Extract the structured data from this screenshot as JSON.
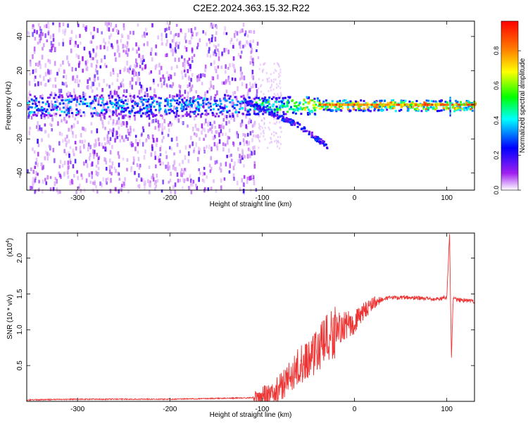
{
  "figure": {
    "title": "C2E2.2024.363.15.32.R22"
  },
  "chart_data": [
    {
      "type": "heatmap",
      "xlabel": "Height of straight line (km)",
      "ylabel": "Frequency (Hz)",
      "xlim": [
        -355,
        130
      ],
      "ylim": [
        -50,
        49
      ],
      "x_ticks": [
        -300,
        -200,
        -100,
        0,
        100
      ],
      "y_ticks": [
        -40,
        -20,
        0,
        20,
        40
      ],
      "colorbar": {
        "label": "Normalized spectral amplitude",
        "range": [
          0,
          0.97
        ],
        "ticks": [
          "0.0",
          "0.2",
          "0.4",
          "0.6",
          "0.8"
        ],
        "colormap": [
          "#ffffff",
          "#a020f0",
          "#0000ff",
          "#00ffff",
          "#00ff00",
          "#ffff00",
          "#ff8000",
          "#ff0000"
        ]
      },
      "features": {
        "noise_region_x": [
          -355,
          -105
        ],
        "band_center_hz": 0,
        "band_halfwidth_hz": 4,
        "diverging_branch": {
          "x": [
            -120,
            -60,
            -30
          ],
          "y": [
            3,
            -12,
            -24
          ]
        },
        "spike_x": 103
      }
    },
    {
      "type": "line",
      "xlabel": "Height of straight line (km)",
      "ylabel": "SNR (10 * v/v)",
      "y_multiplier": "(x10",
      "y_multiplier_exp": "4",
      "xlim": [
        -355,
        130
      ],
      "ylim": [
        0,
        2.35
      ],
      "x_ticks": [
        -300,
        -200,
        -100,
        0,
        100
      ],
      "y_ticks": [
        "0.5",
        "1.0",
        "1.5",
        "2.0"
      ],
      "color": "#ee3333",
      "series": [
        {
          "x": [
            -355,
            -300,
            -200,
            -110,
            -90,
            -80,
            -70,
            -60,
            -50,
            -40,
            -30,
            -20,
            -10,
            0,
            10,
            20,
            30,
            40,
            50,
            60,
            70,
            80,
            90,
            100,
            103,
            105,
            107,
            110,
            120,
            130
          ],
          "y": [
            0.02,
            0.03,
            0.03,
            0.05,
            0.1,
            0.2,
            0.35,
            0.5,
            0.6,
            0.72,
            0.85,
            1.0,
            1.05,
            1.1,
            1.25,
            1.38,
            1.42,
            1.45,
            1.45,
            1.45,
            1.44,
            1.43,
            1.43,
            1.45,
            2.35,
            0.6,
            1.45,
            1.42,
            1.41,
            1.39
          ]
        }
      ]
    }
  ]
}
